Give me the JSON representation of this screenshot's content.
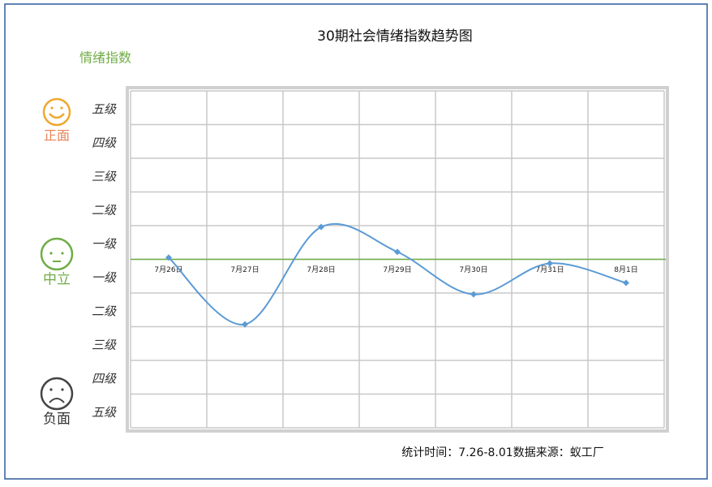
{
  "chart_data": {
    "type": "line",
    "title": "30期社会情绪指数趋势图",
    "y_label": "情绪指数",
    "mood_labels": [
      "正面",
      "中立",
      "负面"
    ],
    "footer": "统计时间：7.26-8.01数据来源：蚁工厂",
    "categories": [
      "7月26日",
      "7月27日",
      "7月28日",
      "7月29日",
      "7月30日",
      "7月31日",
      "8月1日"
    ],
    "series": [
      {
        "name": "情绪指数",
        "color": "#5b9bd5",
        "values": [
          0.05,
          -1.93,
          0.96,
          0.22,
          -1.04,
          -0.12,
          -0.7
        ]
      }
    ],
    "baseline_color": "#70ad47",
    "ylim": [
      -5,
      5
    ],
    "yticks": [
      -5,
      -4,
      -3,
      -2,
      -1,
      0,
      1,
      2,
      3,
      4,
      5
    ],
    "ylevels": [
      {
        "value": 4.5,
        "label": "五级"
      },
      {
        "value": 3.5,
        "label": "四级"
      },
      {
        "value": 2.5,
        "label": "三级"
      },
      {
        "value": 1.5,
        "label": "二级"
      },
      {
        "value": 0.5,
        "label": "一级"
      },
      {
        "value": -0.5,
        "label": "一级"
      },
      {
        "value": -1.5,
        "label": "二级"
      },
      {
        "value": -2.5,
        "label": "三级"
      },
      {
        "value": -3.5,
        "label": "四级"
      },
      {
        "value": -4.5,
        "label": "五级"
      }
    ],
    "grid": true
  }
}
